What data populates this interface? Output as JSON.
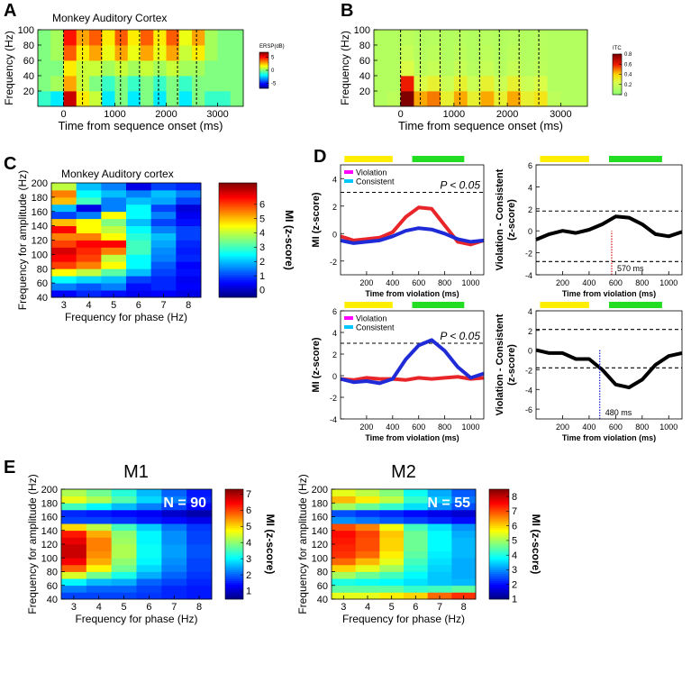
{
  "chart_data": [
    {
      "type": "heatmap",
      "panel": "A",
      "title": "Monkey Auditory Cortex",
      "xlabel": "Time from sequence onset (ms)",
      "ylabel": "Frequency (Hz)",
      "xlim": [
        -500,
        3500
      ],
      "ylim": [
        0,
        100
      ],
      "xticks": [
        0,
        1000,
        2000,
        3000
      ],
      "yticks": [
        20,
        40,
        60,
        80,
        100
      ],
      "xbins": [
        -500,
        -250,
        0,
        250,
        500,
        750,
        1000,
        1250,
        1500,
        1750,
        2000,
        2250,
        2500,
        2750,
        3000,
        3250,
        3500
      ],
      "ybins": [
        0,
        20,
        40,
        60,
        80,
        100
      ],
      "z": [
        [
          -1,
          -2,
          6,
          2,
          1,
          -2,
          0,
          -2,
          0,
          -2,
          0,
          -2,
          0,
          -1,
          -1,
          0
        ],
        [
          0,
          0.5,
          3,
          1,
          0,
          -1,
          0,
          -1,
          0,
          -1,
          0,
          -1,
          0,
          0,
          0,
          0
        ],
        [
          0,
          0,
          2,
          1,
          1,
          0.5,
          1,
          0.5,
          1,
          0.5,
          1,
          0.5,
          0.5,
          0,
          0,
          0
        ],
        [
          0,
          0.5,
          4,
          2,
          3,
          1.5,
          3,
          1.5,
          3,
          1.5,
          3,
          1,
          2,
          0.5,
          0,
          0
        ],
        [
          0,
          0.5,
          5,
          3,
          4,
          2,
          4,
          2,
          4,
          2,
          4,
          1.5,
          3,
          0.5,
          0,
          0
        ]
      ],
      "vlines": [
        0,
        370,
        740,
        1110,
        1480,
        1850,
        2220,
        2590
      ],
      "colormap": "jet",
      "clim": [
        -7,
        7
      ],
      "cticks": [
        -5,
        0,
        5
      ],
      "colorbar_label": "ERSP(dB)"
    },
    {
      "type": "heatmap",
      "panel": "B",
      "xlabel": "Time from sequence onset (ms)",
      "ylabel": "Frequency (Hz)",
      "xlim": [
        -500,
        3500
      ],
      "ylim": [
        0,
        100
      ],
      "xticks": [
        0,
        1000,
        2000,
        3000
      ],
      "yticks": [
        20,
        40,
        60,
        80,
        100
      ],
      "xbins": [
        -500,
        -250,
        0,
        250,
        500,
        750,
        1000,
        1250,
        1500,
        1750,
        2000,
        2250,
        2500,
        2750,
        3000,
        3250,
        3500
      ],
      "ybins": [
        0,
        20,
        40,
        60,
        80,
        100
      ],
      "z": [
        [
          0.12,
          0.15,
          0.8,
          0.45,
          0.5,
          0.3,
          0.45,
          0.3,
          0.45,
          0.3,
          0.45,
          0.3,
          0.35,
          0.15,
          0.12,
          0.12
        ],
        [
          0.12,
          0.12,
          0.6,
          0.25,
          0.3,
          0.2,
          0.3,
          0.2,
          0.3,
          0.2,
          0.3,
          0.2,
          0.25,
          0.12,
          0.12,
          0.12
        ],
        [
          0.12,
          0.12,
          0.25,
          0.15,
          0.18,
          0.13,
          0.18,
          0.13,
          0.18,
          0.13,
          0.18,
          0.13,
          0.15,
          0.12,
          0.12,
          0.12
        ],
        [
          0.12,
          0.12,
          0.18,
          0.13,
          0.15,
          0.12,
          0.15,
          0.12,
          0.15,
          0.12,
          0.15,
          0.12,
          0.14,
          0.12,
          0.12,
          0.12
        ],
        [
          0.12,
          0.12,
          0.15,
          0.12,
          0.13,
          0.12,
          0.13,
          0.12,
          0.13,
          0.12,
          0.13,
          0.12,
          0.13,
          0.12,
          0.12,
          0.12
        ]
      ],
      "vlines": [
        0,
        370,
        740,
        1110,
        1480,
        1850,
        2220,
        2590
      ],
      "colormap": "green-red",
      "clim": [
        0,
        0.8
      ],
      "cticks": [
        0,
        0.2,
        0.4,
        0.6,
        0.8
      ],
      "colorbar_label": "ITC"
    },
    {
      "type": "heatmap",
      "panel": "C",
      "title": "Monkey Auditory cortex",
      "xlabel": "Frequency for phase (Hz)",
      "ylabel": "Frequency for amplitude (Hz)",
      "xlim": [
        2.5,
        8.5
      ],
      "ylim": [
        40,
        200
      ],
      "xticks": [
        3,
        4,
        5,
        6,
        7,
        8
      ],
      "yticks": [
        40,
        60,
        80,
        100,
        120,
        140,
        160,
        180,
        200
      ],
      "xbins": [
        2.5,
        3.5,
        4.5,
        5.5,
        6.5,
        7.5,
        8.5
      ],
      "ybins": [
        40,
        50,
        60,
        70,
        80,
        90,
        100,
        110,
        120,
        130,
        140,
        150,
        160,
        170,
        180,
        190,
        200
      ],
      "z": [
        [
          0.5,
          0.8,
          0.6,
          0.4,
          0.5,
          0.3
        ],
        [
          1.5,
          1.2,
          1.5,
          0.6,
          0.8,
          0.5
        ],
        [
          2.5,
          2.2,
          2.0,
          1.0,
          0.8,
          0.4
        ],
        [
          4.5,
          4.0,
          3.2,
          2.0,
          1.0,
          0.6
        ],
        [
          6.0,
          5.5,
          4.5,
          2.5,
          1.2,
          0.5
        ],
        [
          6.5,
          6.0,
          4.0,
          2.5,
          1.5,
          0.8
        ],
        [
          6.8,
          6.2,
          5.5,
          3.0,
          1.6,
          0.7
        ],
        [
          6.0,
          6.5,
          6.5,
          3.0,
          1.8,
          0.8
        ],
        [
          5.5,
          5.5,
          4.5,
          2.8,
          2.0,
          1.0
        ],
        [
          6.5,
          4.5,
          4.0,
          2.5,
          1.5,
          1.0
        ],
        [
          5.0,
          4.5,
          3.5,
          2.0,
          1.0,
          0.6
        ],
        [
          1.0,
          1.5,
          4.5,
          2.5,
          1.5,
          0.4
        ],
        [
          2.0,
          0.3,
          1.5,
          2.5,
          1.0,
          0.2
        ],
        [
          5.0,
          3.0,
          1.5,
          2.0,
          1.8,
          1.0
        ],
        [
          5.5,
          2.5,
          2.0,
          1.5,
          2.0,
          1.5
        ],
        [
          4.0,
          2.0,
          1.5,
          0.3,
          1.0,
          0.8
        ]
      ],
      "colormap": "jet",
      "clim": [
        -0.5,
        7.5
      ],
      "cticks": [
        0,
        1,
        2,
        3,
        4,
        5,
        6
      ],
      "colorbar_label": "MI (z-score)"
    },
    {
      "type": "line",
      "panel": "D",
      "xlabel": "Time from violation (ms)",
      "ylabel": [
        "MI (z-score)"
      ],
      "xlim": [
        0,
        1100
      ],
      "ylim": [
        -3,
        5
      ],
      "xticks": [
        200,
        400,
        600,
        800,
        1000
      ],
      "yticks": [
        -2,
        0,
        2,
        4
      ],
      "x": [
        0,
        100,
        200,
        300,
        400,
        500,
        600,
        700,
        800,
        900,
        1000,
        1100
      ],
      "series": [
        {
          "name": "Violation",
          "legend_color": "#ff00ff",
          "color": "#e8262a",
          "values": [
            -0.2,
            -0.5,
            -0.4,
            -0.3,
            0.1,
            1.2,
            1.9,
            1.8,
            0.6,
            -0.6,
            -0.8,
            -0.5
          ]
        },
        {
          "name": "Consistent",
          "legend_color": "#00c8ff",
          "color": "#1f2bd6",
          "values": [
            -0.5,
            -0.7,
            -0.6,
            -0.5,
            -0.2,
            0.2,
            0.4,
            0.3,
            0,
            -0.4,
            -0.6,
            -0.5
          ]
        }
      ],
      "legend": true,
      "hlines": [
        3
      ],
      "threshold_label": "P < 0.05",
      "bars": [
        {
          "start": 30,
          "end": 400,
          "color": "#ffee00"
        },
        {
          "start": 550,
          "end": 950,
          "color": "#22dd22"
        }
      ]
    },
    {
      "type": "line",
      "xlabel": "Time from violation (ms)",
      "ylabel": [
        "Violation - Consistent",
        "(z-score)"
      ],
      "xlim": [
        0,
        1100
      ],
      "ylim": [
        -4,
        6
      ],
      "xticks": [
        200,
        400,
        600,
        800,
        1000
      ],
      "yticks": [
        -4,
        -2,
        0,
        2,
        4,
        6
      ],
      "x": [
        0,
        100,
        200,
        300,
        400,
        500,
        600,
        700,
        800,
        900,
        1000,
        1100
      ],
      "series": [
        {
          "color": "#000000",
          "values": [
            -0.8,
            -0.3,
            0,
            -0.2,
            0.1,
            0.6,
            1.3,
            1.2,
            0.6,
            -0.3,
            -0.5,
            -0.1
          ]
        }
      ],
      "legend": false,
      "hlines": [
        1.8,
        -2.8
      ],
      "marker": {
        "x": 570,
        "label": "570 ms",
        "color": "#d62728"
      },
      "bars": [
        {
          "start": 30,
          "end": 400,
          "color": "#ffee00"
        },
        {
          "start": 550,
          "end": 950,
          "color": "#22dd22"
        }
      ]
    },
    {
      "type": "line",
      "xlabel": "Time from violation (ms)",
      "ylabel": [
        "MI (z-score)"
      ],
      "xlim": [
        0,
        1100
      ],
      "ylim": [
        -4,
        6
      ],
      "xticks": [
        200,
        400,
        600,
        800,
        1000
      ],
      "yticks": [
        -4,
        -2,
        0,
        2,
        4,
        6
      ],
      "x": [
        0,
        100,
        200,
        300,
        400,
        500,
        600,
        700,
        800,
        900,
        1000,
        1100
      ],
      "series": [
        {
          "name": "Violation",
          "legend_color": "#ff00ff",
          "color": "#e8262a",
          "values": [
            -0.3,
            -0.4,
            -0.2,
            -0.3,
            -0.3,
            -0.4,
            -0.2,
            -0.3,
            -0.2,
            -0.1,
            -0.3,
            -0.2
          ]
        },
        {
          "name": "Consistent",
          "legend_color": "#00c8ff",
          "color": "#1f2bd6",
          "values": [
            -0.3,
            -0.6,
            -0.5,
            -0.7,
            -0.3,
            1.5,
            2.8,
            3.3,
            2.3,
            0.8,
            -0.2,
            0.2
          ]
        }
      ],
      "legend": true,
      "hlines": [
        3
      ],
      "threshold_label": "P < 0.05",
      "bars": [
        {
          "start": 30,
          "end": 400,
          "color": "#ffee00"
        },
        {
          "start": 550,
          "end": 950,
          "color": "#22dd22"
        }
      ]
    },
    {
      "type": "line",
      "xlabel": "Time from violation (ms)",
      "ylabel": [
        "Violation - Consistent",
        "(z-score)"
      ],
      "xlim": [
        0,
        1100
      ],
      "ylim": [
        -7,
        4
      ],
      "xticks": [
        200,
        400,
        600,
        800,
        1000
      ],
      "yticks": [
        -6,
        -4,
        -2,
        0,
        2,
        4
      ],
      "x": [
        0,
        100,
        200,
        300,
        400,
        500,
        600,
        700,
        800,
        900,
        1000,
        1100
      ],
      "series": [
        {
          "color": "#000000",
          "values": [
            0,
            -0.3,
            -0.3,
            -0.9,
            -0.9,
            -2.0,
            -3.5,
            -3.8,
            -3.0,
            -1.5,
            -0.6,
            -0.3
          ]
        }
      ],
      "legend": false,
      "hlines": [
        2.1,
        -1.8
      ],
      "marker": {
        "x": 480,
        "label": "480 ms",
        "color": "#1f2bd6"
      },
      "bars": [
        {
          "start": 30,
          "end": 400,
          "color": "#ffee00"
        },
        {
          "start": 550,
          "end": 950,
          "color": "#22dd22"
        }
      ]
    },
    {
      "type": "heatmap",
      "panel": "E",
      "title": "M1",
      "annotation": "N = 90",
      "xlabel": "Frequency for phase (Hz)",
      "ylabel": "Frequency for amplitude (Hz)",
      "xlim": [
        2.5,
        8.5
      ],
      "ylim": [
        40,
        200
      ],
      "xticks": [
        3,
        4,
        5,
        6,
        7,
        8
      ],
      "yticks": [
        40,
        60,
        80,
        100,
        120,
        140,
        160,
        180,
        200
      ],
      "xbins": [
        2.5,
        3.5,
        4.5,
        5.5,
        6.5,
        7.5,
        8.5
      ],
      "ybins": [
        40,
        50,
        60,
        70,
        80,
        90,
        100,
        110,
        120,
        130,
        140,
        150,
        160,
        170,
        180,
        190,
        200
      ],
      "z": [
        [
          1.8,
          1.8,
          1.8,
          1.7,
          1.6,
          1.5
        ],
        [
          2.2,
          2.0,
          2.0,
          1.8,
          1.6,
          1.5
        ],
        [
          3.0,
          2.6,
          2.5,
          2.0,
          1.8,
          1.6
        ],
        [
          4.5,
          3.8,
          3.2,
          2.5,
          2.0,
          1.7
        ],
        [
          5.8,
          4.8,
          3.8,
          2.8,
          2.2,
          1.8
        ],
        [
          6.5,
          5.3,
          4.0,
          3.0,
          2.3,
          1.8
        ],
        [
          6.8,
          5.5,
          4.2,
          3.1,
          2.4,
          1.9
        ],
        [
          6.8,
          5.6,
          4.2,
          3.1,
          2.4,
          1.9
        ],
        [
          6.6,
          5.6,
          4.1,
          3.0,
          2.3,
          1.8
        ],
        [
          6.3,
          5.3,
          4.0,
          3.0,
          2.3,
          1.8
        ],
        [
          5.0,
          4.3,
          3.5,
          2.7,
          2.1,
          1.7
        ],
        [
          1.8,
          1.8,
          1.7,
          1.5,
          1.4,
          1.2
        ],
        [
          1.6,
          1.5,
          1.4,
          1.3,
          1.0,
          0.8
        ],
        [
          3.5,
          3.0,
          2.6,
          2.2,
          1.8,
          1.4
        ],
        [
          4.6,
          4.2,
          3.6,
          2.8,
          2.2,
          1.6
        ],
        [
          4.2,
          3.8,
          3.3,
          2.6,
          2.0,
          1.5
        ]
      ],
      "colormap": "jet",
      "clim": [
        0.5,
        7.3
      ],
      "cticks": [
        1,
        2,
        3,
        4,
        5,
        6,
        7
      ],
      "colorbar_label": "MI (z-score)"
    },
    {
      "type": "heatmap",
      "title": "M2",
      "annotation": "N = 55",
      "xlabel": "Frequency for phase (Hz)",
      "ylabel": "Frequency for amplitude (Hz)",
      "xlim": [
        2.5,
        8.5
      ],
      "ylim": [
        40,
        200
      ],
      "xticks": [
        3,
        4,
        5,
        6,
        7,
        8
      ],
      "yticks": [
        40,
        60,
        80,
        100,
        120,
        140,
        160,
        180,
        200
      ],
      "xbins": [
        2.5,
        3.5,
        4.5,
        5.5,
        6.5,
        7.5,
        8.5
      ],
      "ybins": [
        40,
        50,
        60,
        70,
        80,
        90,
        100,
        110,
        120,
        130,
        140,
        150,
        160,
        170,
        180,
        190,
        200
      ],
      "z": [
        [
          5.5,
          5.5,
          5.8,
          6.0,
          6.8,
          7.2
        ],
        [
          4.5,
          4.5,
          4.5,
          4.2,
          4.3,
          4.5
        ],
        [
          4.0,
          3.9,
          3.8,
          3.6,
          3.4,
          3.3
        ],
        [
          5.0,
          4.6,
          4.3,
          3.8,
          3.4,
          3.2
        ],
        [
          6.0,
          5.5,
          5.0,
          4.1,
          3.5,
          3.2
        ],
        [
          6.8,
          6.2,
          5.5,
          4.3,
          3.6,
          3.2
        ],
        [
          7.2,
          6.8,
          5.8,
          4.5,
          3.7,
          3.3
        ],
        [
          7.3,
          7.0,
          6.0,
          4.6,
          3.8,
          3.3
        ],
        [
          7.4,
          7.0,
          6.0,
          4.6,
          3.8,
          3.3
        ],
        [
          7.5,
          7.1,
          6.1,
          4.6,
          3.8,
          3.2
        ],
        [
          7.0,
          6.6,
          5.6,
          4.3,
          3.6,
          3.0
        ],
        [
          3.0,
          2.8,
          2.6,
          2.4,
          2.2,
          2.0
        ],
        [
          2.5,
          2.3,
          2.2,
          2.0,
          1.8,
          1.6
        ],
        [
          5.0,
          4.6,
          4.2,
          3.6,
          3.0,
          2.5
        ],
        [
          6.2,
          5.8,
          5.2,
          4.2,
          3.4,
          2.8
        ],
        [
          5.5,
          5.2,
          4.8,
          3.9,
          3.2,
          2.6
        ]
      ],
      "colormap": "jet",
      "clim": [
        1,
        8.5
      ],
      "cticks": [
        1,
        2,
        3,
        4,
        5,
        6,
        7,
        8
      ],
      "colorbar_label": "MI (z-score)"
    }
  ]
}
